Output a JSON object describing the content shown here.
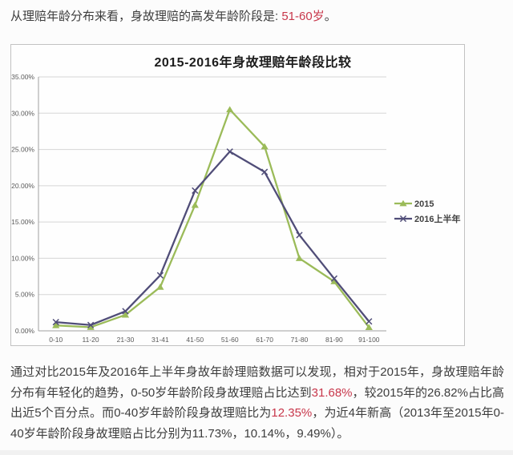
{
  "colors": {
    "accent_red": "#c8374b",
    "body_text": "#3d3d3d",
    "title_text": "#1c1c1c",
    "gridline": "#d6d6d6",
    "axis": "#a0a0a0",
    "axis_label": "#595959",
    "legend_label": "#404040",
    "panel_border": "#c2c2c2",
    "panel_bg": "#fefefe",
    "series_2015": "#9bbb59",
    "series_2016": "#504d78"
  },
  "intro": {
    "pre": "从理赔年龄分布来看，身故理赔的高发年龄阶段是: ",
    "highlight": "51-60岁",
    "post": "。"
  },
  "chart_data": {
    "type": "line",
    "title": "2015-2016年身故理赔年龄段比较",
    "categories": [
      "0-10",
      "11-20",
      "21-30",
      "31-41",
      "41-50",
      "51-60",
      "61-70",
      "71-80",
      "81-90",
      "91-100"
    ],
    "series": [
      {
        "name": "2015",
        "color": "#9bbb59",
        "marker": "triangle",
        "values": [
          0.75,
          0.5,
          2.2,
          6.04,
          17.33,
          30.5,
          25.4,
          10.0,
          6.8,
          0.48
        ]
      },
      {
        "name": "2016上半年",
        "color": "#504d78",
        "marker": "x",
        "values": [
          1.2,
          0.8,
          2.7,
          7.65,
          19.33,
          24.7,
          21.9,
          13.2,
          7.2,
          1.3
        ]
      }
    ],
    "value_unit": "percent",
    "ylim": [
      0,
      35
    ],
    "ytick_step": 5,
    "yticks": [
      "0.00%",
      "5.00%",
      "10.00%",
      "15.00%",
      "20.00%",
      "25.00%",
      "30.00%",
      "35.00%"
    ],
    "grid": true,
    "legend_position": "right"
  },
  "analysis": {
    "p1": "通过对比2015年及2016年上半年身故年龄理赔数据可以发现，相对于2015年，身故理赔年龄分布有年轻化的趋势，0-50岁年龄阶段身故理赔占比达到",
    "red1": "31.68%",
    "p2": "，较2015年的26.82%占比高出近5个百分点。而0-40岁年龄阶段身故理赔比为",
    "red2": "12.35%",
    "p3": "，为近4年新高（2013年至2015年0-40岁年龄阶段身故理赔占比分别为11.73%，10.14%，9.49%）。"
  }
}
